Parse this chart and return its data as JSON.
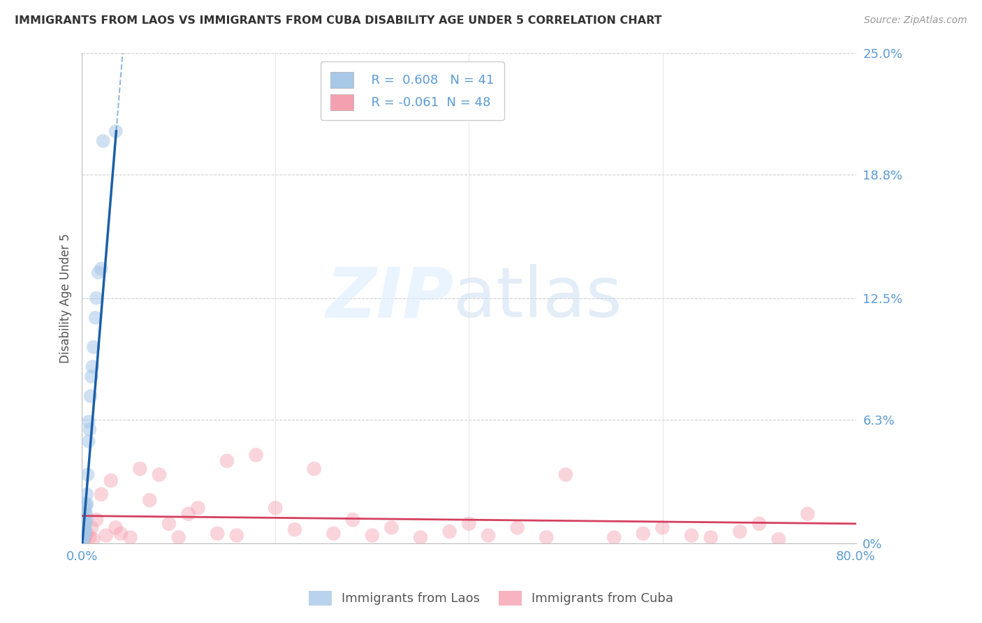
{
  "title": "IMMIGRANTS FROM LAOS VS IMMIGRANTS FROM CUBA DISABILITY AGE UNDER 5 CORRELATION CHART",
  "source": "Source: ZipAtlas.com",
  "ylabel": "Disability Age Under 5",
  "xlim": [
    0,
    80.0
  ],
  "ylim": [
    0,
    25.0
  ],
  "legend_label_1": "Immigrants from Laos",
  "legend_label_2": "Immigrants from Cuba",
  "R1": 0.608,
  "N1": 41,
  "R2": -0.061,
  "N2": 48,
  "color_laos": "#a8c8e8",
  "color_cuba": "#f5a0b0",
  "color_line_laos": "#1a5fa8",
  "color_line_cuba": "#d44060",
  "color_tick": "#5b9bd5",
  "color_title": "#333333",
  "laos_x": [
    0.05,
    0.05,
    0.05,
    0.1,
    0.1,
    0.1,
    0.1,
    0.15,
    0.15,
    0.15,
    0.2,
    0.2,
    0.2,
    0.2,
    0.25,
    0.25,
    0.3,
    0.3,
    0.3,
    0.35,
    0.35,
    0.4,
    0.4,
    0.45,
    0.5,
    0.5,
    0.55,
    0.6,
    0.7,
    0.7,
    0.8,
    0.9,
    1.0,
    1.1,
    1.2,
    1.4,
    1.5,
    1.7,
    2.0,
    2.2,
    3.5
  ],
  "laos_y": [
    0.1,
    0.2,
    0.3,
    0.2,
    0.3,
    0.5,
    0.8,
    0.3,
    0.4,
    0.6,
    0.4,
    0.5,
    0.8,
    1.0,
    0.6,
    1.2,
    0.5,
    0.8,
    1.5,
    0.7,
    1.8,
    1.0,
    2.0,
    1.5,
    1.2,
    2.5,
    2.0,
    3.5,
    5.2,
    6.2,
    5.8,
    7.5,
    8.5,
    9.0,
    10.0,
    11.5,
    12.5,
    13.8,
    14.0,
    20.5,
    21.0
  ],
  "cuba_x": [
    0.1,
    0.2,
    0.3,
    0.5,
    0.8,
    1.0,
    1.2,
    1.5,
    2.0,
    2.5,
    3.0,
    3.5,
    4.0,
    5.0,
    6.0,
    7.0,
    8.0,
    9.0,
    10.0,
    11.0,
    12.0,
    14.0,
    15.0,
    16.0,
    18.0,
    20.0,
    22.0,
    24.0,
    26.0,
    28.0,
    30.0,
    32.0,
    35.0,
    38.0,
    40.0,
    42.0,
    45.0,
    48.0,
    50.0,
    55.0,
    58.0,
    60.0,
    63.0,
    65.0,
    68.0,
    70.0,
    72.0,
    75.0
  ],
  "cuba_y": [
    0.4,
    0.2,
    0.3,
    0.5,
    0.3,
    0.8,
    0.2,
    1.2,
    2.5,
    0.4,
    3.2,
    0.8,
    0.5,
    0.3,
    3.8,
    2.2,
    3.5,
    1.0,
    0.3,
    1.5,
    1.8,
    0.5,
    4.2,
    0.4,
    4.5,
    1.8,
    0.7,
    3.8,
    0.5,
    1.2,
    0.4,
    0.8,
    0.3,
    0.6,
    1.0,
    0.4,
    0.8,
    0.3,
    3.5,
    0.3,
    0.5,
    0.8,
    0.4,
    0.3,
    0.6,
    1.0,
    0.2,
    1.5
  ],
  "y_tick_vals": [
    0.0,
    6.3,
    12.5,
    18.8,
    25.0
  ],
  "y_tick_labels": [
    "0%",
    "6.3%",
    "12.5%",
    "18.8%",
    "25.0%"
  ]
}
